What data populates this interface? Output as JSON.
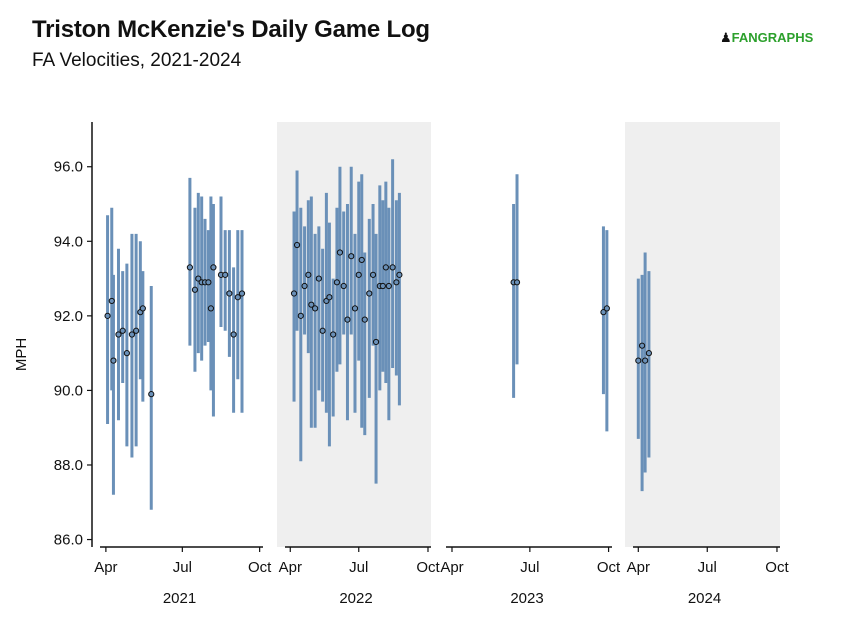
{
  "header": {
    "title": "Triston McKenzie's Daily Game Log",
    "subtitle": "FA Velocities, 2021-2024",
    "logo_mark": "♟",
    "logo_text": "FANGRAPHS"
  },
  "colors": {
    "range_bar": "#6a90b8",
    "point_fill": "#6a90b8",
    "point_stroke": "#111111",
    "panel_shade": "#efefef",
    "axis": "#111111",
    "logo": "#2ca02c"
  },
  "chart_data": {
    "type": "range",
    "title": "Triston McKenzie's Daily Game Log",
    "subtitle": "FA Velocities, 2021-2024",
    "ylabel": "MPH",
    "ylim": [
      85.8,
      97.2
    ],
    "yticks": [
      86.0,
      88.0,
      90.0,
      92.0,
      94.0,
      96.0
    ],
    "ytick_labels": [
      "86.0",
      "88.0",
      "90.0",
      "92.0",
      "94.0",
      "96.0"
    ],
    "xticks": [
      "Apr",
      "Jul",
      "Oct"
    ],
    "x_domain": [
      "03-25",
      "10-05"
    ],
    "grid": false,
    "panels": [
      {
        "year": "2021",
        "shaded": false,
        "games": [
          {
            "date": "2021-04-03",
            "min": 89.1,
            "max": 94.7,
            "avg": 92.0
          },
          {
            "date": "2021-04-08",
            "min": 90.0,
            "max": 94.9,
            "avg": 92.4
          },
          {
            "date": "2021-04-10",
            "min": 87.2,
            "max": 93.1,
            "avg": 90.8
          },
          {
            "date": "2021-04-16",
            "min": 89.2,
            "max": 93.8,
            "avg": 91.5
          },
          {
            "date": "2021-04-21",
            "min": 90.2,
            "max": 93.2,
            "avg": 91.6
          },
          {
            "date": "2021-04-26",
            "min": 88.5,
            "max": 93.4,
            "avg": 91.0
          },
          {
            "date": "2021-05-02",
            "min": 88.2,
            "max": 94.2,
            "avg": 91.5
          },
          {
            "date": "2021-05-07",
            "min": 88.5,
            "max": 94.2,
            "avg": 91.6
          },
          {
            "date": "2021-05-12",
            "min": 90.3,
            "max": 94.0,
            "avg": 92.1
          },
          {
            "date": "2021-05-15",
            "min": 89.7,
            "max": 93.2,
            "avg": 92.2
          },
          {
            "date": "2021-05-25",
            "min": 86.8,
            "max": 92.8,
            "avg": 89.9
          },
          {
            "date": "2021-07-10",
            "min": 91.2,
            "max": 95.7,
            "avg": 93.3
          },
          {
            "date": "2021-07-16",
            "min": 90.5,
            "max": 94.9,
            "avg": 92.7
          },
          {
            "date": "2021-07-20",
            "min": 91.0,
            "max": 95.3,
            "avg": 93.0
          },
          {
            "date": "2021-07-24",
            "min": 90.8,
            "max": 95.2,
            "avg": 92.9
          },
          {
            "date": "2021-07-28",
            "min": 91.2,
            "max": 94.6,
            "avg": 92.9
          },
          {
            "date": "2021-08-01",
            "min": 91.3,
            "max": 94.3,
            "avg": 92.9
          },
          {
            "date": "2021-08-04",
            "min": 90.0,
            "max": 95.2,
            "avg": 92.2
          },
          {
            "date": "2021-08-07",
            "min": 89.3,
            "max": 95.0,
            "avg": 93.3
          },
          {
            "date": "2021-08-16",
            "min": 91.7,
            "max": 95.2,
            "avg": 93.1
          },
          {
            "date": "2021-08-21",
            "min": 91.6,
            "max": 94.3,
            "avg": 93.1
          },
          {
            "date": "2021-08-26",
            "min": 90.9,
            "max": 94.3,
            "avg": 92.6
          },
          {
            "date": "2021-08-31",
            "min": 89.4,
            "max": 93.3,
            "avg": 91.5
          },
          {
            "date": "2021-09-05",
            "min": 90.3,
            "max": 94.3,
            "avg": 92.5
          },
          {
            "date": "2021-09-10",
            "min": 89.4,
            "max": 94.3,
            "avg": 92.6
          }
        ]
      },
      {
        "year": "2022",
        "shaded": true,
        "games": [
          {
            "date": "2022-04-06",
            "min": 89.7,
            "max": 94.8,
            "avg": 92.6
          },
          {
            "date": "2022-04-10",
            "min": 91.6,
            "max": 95.9,
            "avg": 93.9
          },
          {
            "date": "2022-04-15",
            "min": 88.1,
            "max": 94.9,
            "avg": 92.0
          },
          {
            "date": "2022-04-20",
            "min": 91.5,
            "max": 94.4,
            "avg": 92.8
          },
          {
            "date": "2022-04-25",
            "min": 91.0,
            "max": 95.1,
            "avg": 93.1
          },
          {
            "date": "2022-04-29",
            "min": 89.0,
            "max": 95.2,
            "avg": 92.3
          },
          {
            "date": "2022-05-04",
            "min": 89.0,
            "max": 94.2,
            "avg": 92.2
          },
          {
            "date": "2022-05-09",
            "min": 90.0,
            "max": 94.4,
            "avg": 93.0
          },
          {
            "date": "2022-05-14",
            "min": 89.7,
            "max": 93.8,
            "avg": 91.6
          },
          {
            "date": "2022-05-19",
            "min": 89.4,
            "max": 95.3,
            "avg": 92.4
          },
          {
            "date": "2022-05-23",
            "min": 88.5,
            "max": 94.5,
            "avg": 92.5
          },
          {
            "date": "2022-05-28",
            "min": 89.3,
            "max": 93.0,
            "avg": 91.5
          },
          {
            "date": "2022-06-02",
            "min": 90.5,
            "max": 94.9,
            "avg": 92.9
          },
          {
            "date": "2022-06-06",
            "min": 90.7,
            "max": 96.0,
            "avg": 93.7
          },
          {
            "date": "2022-06-11",
            "min": 91.5,
            "max": 94.8,
            "avg": 92.8
          },
          {
            "date": "2022-06-16",
            "min": 89.2,
            "max": 95.0,
            "avg": 91.9
          },
          {
            "date": "2022-06-21",
            "min": 91.5,
            "max": 96.0,
            "avg": 93.6
          },
          {
            "date": "2022-06-26",
            "min": 89.4,
            "max": 94.2,
            "avg": 92.2
          },
          {
            "date": "2022-07-01",
            "min": 90.8,
            "max": 95.6,
            "avg": 93.1
          },
          {
            "date": "2022-07-05",
            "min": 89.0,
            "max": 95.8,
            "avg": 93.5
          },
          {
            "date": "2022-07-09",
            "min": 88.8,
            "max": 93.7,
            "avg": 91.9
          },
          {
            "date": "2022-07-15",
            "min": 89.8,
            "max": 94.6,
            "avg": 92.6
          },
          {
            "date": "2022-07-20",
            "min": 91.2,
            "max": 95.0,
            "avg": 93.1
          },
          {
            "date": "2022-07-24",
            "min": 87.5,
            "max": 94.2,
            "avg": 91.3
          },
          {
            "date": "2022-07-29",
            "min": 90.0,
            "max": 95.5,
            "avg": 92.8
          },
          {
            "date": "2022-08-02",
            "min": 90.5,
            "max": 95.1,
            "avg": 92.8
          },
          {
            "date": "2022-08-06",
            "min": 90.2,
            "max": 95.6,
            "avg": 93.3
          },
          {
            "date": "2022-08-10",
            "min": 89.2,
            "max": 94.9,
            "avg": 92.8
          },
          {
            "date": "2022-08-15",
            "min": 90.6,
            "max": 96.2,
            "avg": 93.3
          },
          {
            "date": "2022-08-20",
            "min": 90.4,
            "max": 95.1,
            "avg": 92.9
          },
          {
            "date": "2022-08-24",
            "min": 89.6,
            "max": 95.3,
            "avg": 93.1
          }
        ]
      },
      {
        "year": "2023",
        "shaded": false,
        "games": [
          {
            "date": "2023-06-12",
            "min": 89.8,
            "max": 95.0,
            "avg": 92.9
          },
          {
            "date": "2023-06-16",
            "min": 90.7,
            "max": 95.8,
            "avg": 92.9
          },
          {
            "date": "2023-09-25",
            "min": 89.9,
            "max": 94.4,
            "avg": 92.1
          },
          {
            "date": "2023-09-29",
            "min": 88.9,
            "max": 94.3,
            "avg": 92.2
          }
        ]
      },
      {
        "year": "2024",
        "shaded": true,
        "games": [
          {
            "date": "2024-04-01",
            "min": 88.7,
            "max": 93.0,
            "avg": 90.8
          },
          {
            "date": "2024-04-06",
            "min": 87.3,
            "max": 93.1,
            "avg": 91.2
          },
          {
            "date": "2024-04-10",
            "min": 87.8,
            "max": 93.7,
            "avg": 90.8
          },
          {
            "date": "2024-04-15",
            "min": 88.2,
            "max": 93.2,
            "avg": 91.0
          }
        ]
      }
    ]
  }
}
